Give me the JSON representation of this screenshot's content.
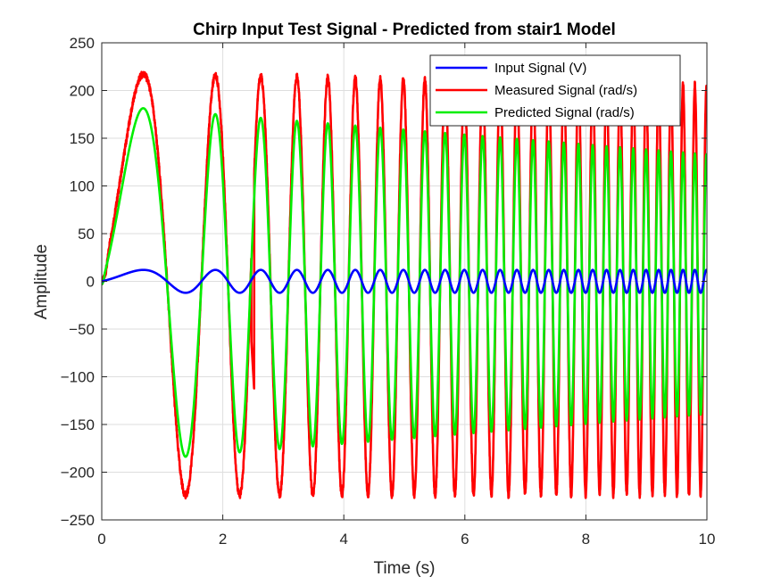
{
  "chart_data": {
    "type": "line",
    "title": "Chirp Input Test Signal - Predicted from stair1 Model",
    "xlabel": "Time (s)",
    "ylabel": "Amplitude",
    "xlim": [
      0,
      10
    ],
    "ylim": [
      -250,
      250
    ],
    "xticks": [
      0,
      2,
      4,
      6,
      8,
      10
    ],
    "yticks": [
      -250,
      -200,
      -150,
      -100,
      -50,
      0,
      50,
      100,
      150,
      200,
      250
    ],
    "grid": true,
    "legend_position": "top-right",
    "series": [
      {
        "name": "Input Signal (V)",
        "color": "#0000ff",
        "amplitude": 12,
        "peak_times": [
          0.25,
          1.05,
          1.72,
          2.3,
          2.8,
          3.25
        ],
        "values_note": "chirp oscillation with constant amplitude ~12 V"
      },
      {
        "name": "Measured Signal (rad/s)",
        "color": "#ff0000",
        "peaks": [
          [
            0.25,
            218
          ],
          [
            1.07,
            220
          ],
          [
            1.72,
            220
          ],
          [
            2.3,
            220
          ],
          [
            2.8,
            215
          ],
          [
            3.25,
            215
          ],
          [
            8.3,
            210
          ],
          [
            9.5,
            210
          ]
        ],
        "troughs": [
          [
            0.7,
            -227
          ],
          [
            1.4,
            -226
          ],
          [
            2.0,
            -226
          ],
          [
            2.55,
            -222
          ],
          [
            3.05,
            -222
          ],
          [
            3.55,
            -220
          ],
          [
            7.0,
            -220
          ],
          [
            9.0,
            -210
          ]
        ],
        "values_note": "chirp response, amplitude ~215 declining to ~200"
      },
      {
        "name": "Predicted Signal (rad/s)",
        "color": "#00ee00",
        "peaks": [
          [
            0.25,
            188
          ],
          [
            1.05,
            185
          ],
          [
            1.72,
            182
          ],
          [
            2.3,
            176
          ],
          [
            3.0,
            168
          ],
          [
            5.0,
            155
          ],
          [
            7.0,
            150
          ],
          [
            9.0,
            142
          ],
          [
            10.0,
            138
          ]
        ],
        "troughs": [
          [
            0.7,
            -186
          ],
          [
            1.4,
            -183
          ],
          [
            2.0,
            -182
          ],
          [
            2.55,
            -176
          ],
          [
            3.0,
            -172
          ],
          [
            5.0,
            -160
          ],
          [
            7.0,
            -155
          ],
          [
            9.0,
            -148
          ],
          [
            10.0,
            -145
          ]
        ],
        "values_note": "model-predicted chirp response with slowly decaying amplitude"
      }
    ]
  }
}
